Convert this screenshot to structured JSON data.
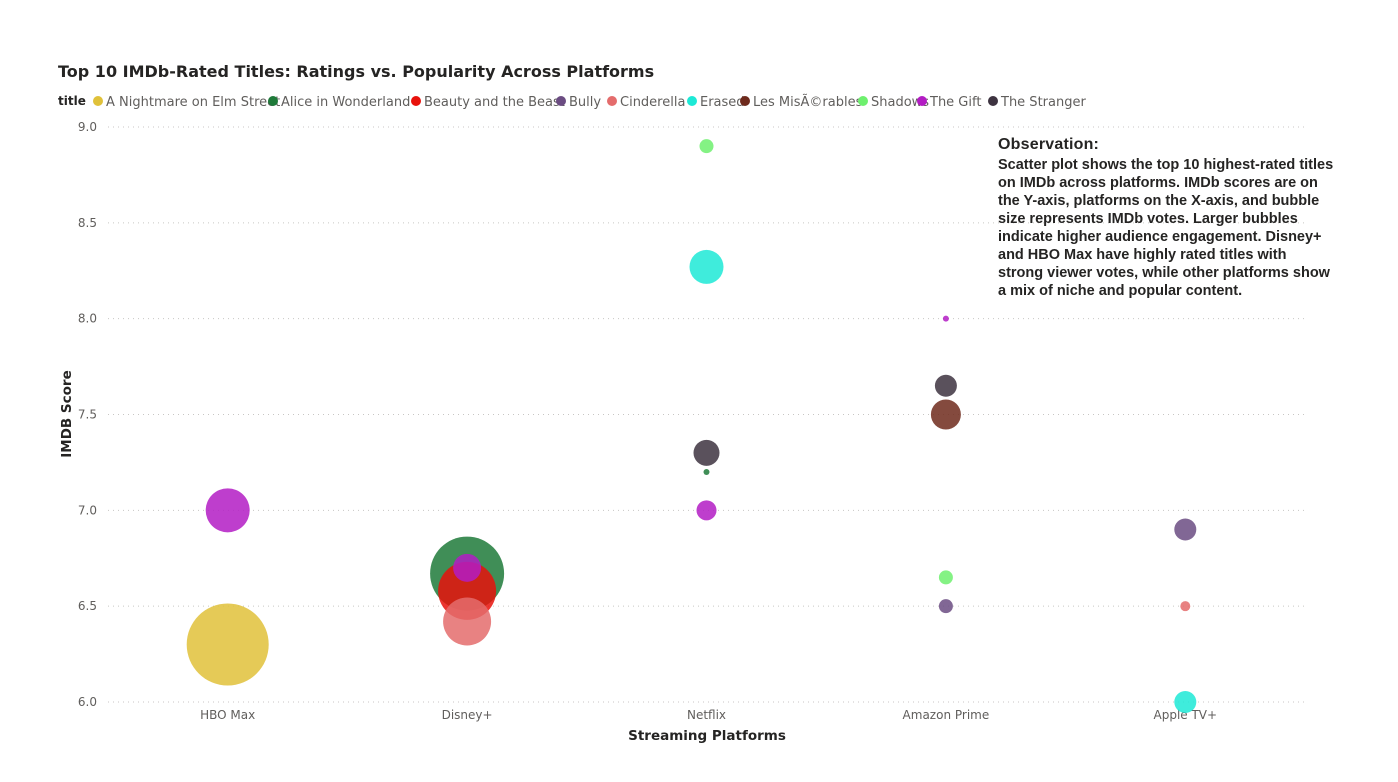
{
  "chart_data": {
    "type": "scatter",
    "title": "Top 10 IMDb-Rated Titles: Ratings vs. Popularity Across Platforms",
    "legend_title": "title",
    "legend_position": "top-left",
    "xlabel": "Streaming Platforms",
    "ylabel": "IMDB Score",
    "categories": [
      "HBO Max",
      "Disney+",
      "Netflix",
      "Amazon Prime",
      "Apple TV+"
    ],
    "ylim": [
      6.0,
      9.0
    ],
    "yticks": [
      "6.0",
      "6.5",
      "7.0",
      "7.5",
      "8.0",
      "8.5",
      "9.0"
    ],
    "grid": true,
    "series": [
      {
        "name": "A Nightmare on Elm Street",
        "color": "#e0c13a",
        "points": [
          {
            "x": "HBO Max",
            "y": 6.3,
            "size": 41
          }
        ]
      },
      {
        "name": "Alice in Wonderland",
        "color": "#1f7a3a",
        "points": [
          {
            "x": "Disney+",
            "y": 6.67,
            "size": 37
          },
          {
            "x": "Netflix",
            "y": 7.2,
            "size": 3
          }
        ]
      },
      {
        "name": "Beauty and the Beast",
        "color": "#e8120c",
        "points": [
          {
            "x": "Disney+",
            "y": 6.58,
            "size": 29
          }
        ]
      },
      {
        "name": "Bully",
        "color": "#6b4c82",
        "points": [
          {
            "x": "Amazon Prime",
            "y": 6.5,
            "size": 7
          },
          {
            "x": "Apple TV+",
            "y": 6.9,
            "size": 11
          }
        ]
      },
      {
        "name": "Cinderella",
        "color": "#e46c6c",
        "points": [
          {
            "x": "Disney+",
            "y": 6.42,
            "size": 24
          },
          {
            "x": "Apple TV+",
            "y": 6.5,
            "size": 5
          }
        ]
      },
      {
        "name": "Erased",
        "color": "#1de9d6",
        "points": [
          {
            "x": "Netflix",
            "y": 8.27,
            "size": 17
          },
          {
            "x": "Apple TV+",
            "y": 6.0,
            "size": 11
          }
        ]
      },
      {
        "name": "Les MisÃ©rables",
        "color": "#6e2a1c",
        "points": [
          {
            "x": "Amazon Prime",
            "y": 7.5,
            "size": 15
          }
        ]
      },
      {
        "name": "Shadows",
        "color": "#6ef06e",
        "points": [
          {
            "x": "Netflix",
            "y": 8.9,
            "size": 7
          },
          {
            "x": "Amazon Prime",
            "y": 6.65,
            "size": 7
          }
        ]
      },
      {
        "name": "The Gift",
        "color": "#b31cc4",
        "points": [
          {
            "x": "HBO Max",
            "y": 7.0,
            "size": 22
          },
          {
            "x": "Disney+",
            "y": 6.7,
            "size": 14
          },
          {
            "x": "Netflix",
            "y": 7.0,
            "size": 10
          },
          {
            "x": "Amazon Prime",
            "y": 8.0,
            "size": 3
          }
        ]
      },
      {
        "name": "The Stranger",
        "color": "#3d3340",
        "points": [
          {
            "x": "Netflix",
            "y": 7.3,
            "size": 13
          },
          {
            "x": "Amazon Prime",
            "y": 7.65,
            "size": 11
          }
        ]
      }
    ],
    "annotation": {
      "heading": "Observation:",
      "lines": [
        "Scatter plot shows the top 10 highest-rated titles",
        "on IMDb across platforms. IMDb scores are on",
        "the Y-axis, platforms on the X-axis, and bubble",
        "size represents IMDb votes. Larger bubbles",
        "indicate higher audience engagement. Disney+",
        "and HBO Max have highly rated titles with",
        "strong viewer votes, while other platforms show",
        "a mix of niche and popular content."
      ]
    }
  }
}
